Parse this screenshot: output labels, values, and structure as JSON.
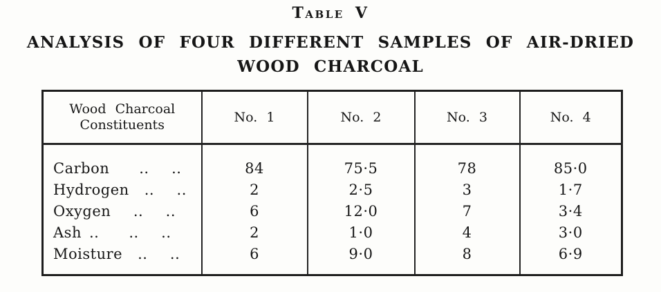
{
  "page": {
    "table_label": "Table V",
    "title_line1": "ANALYSIS OF FOUR DIFFERENT SAMPLES OF AIR-DRIED",
    "title_line2": "WOOD CHARCOAL"
  },
  "table": {
    "header": {
      "constituents_line1": "Wood Charcoal",
      "constituents_line2": "Constituents",
      "sample_columns": [
        "No. 1",
        "No. 2",
        "No. 3",
        "No. 4"
      ]
    },
    "rows": [
      {
        "label": "Carbon  ..  ..",
        "values": [
          "84",
          "75·5",
          "78",
          "85·0"
        ]
      },
      {
        "label": "Hydrogen  ..  ..",
        "values": [
          "2",
          "2·5",
          "3",
          "1·7"
        ]
      },
      {
        "label": "Oxygen  ..  ..",
        "values": [
          "6",
          "12·0",
          "7",
          "3·4"
        ]
      },
      {
        "label": "Ash ..  ..  ..",
        "values": [
          "2",
          "1·0",
          "4",
          "3·0"
        ]
      },
      {
        "label": "Moisture  ..  ..",
        "values": [
          "6",
          "9·0",
          "8",
          "6·9"
        ]
      }
    ]
  }
}
